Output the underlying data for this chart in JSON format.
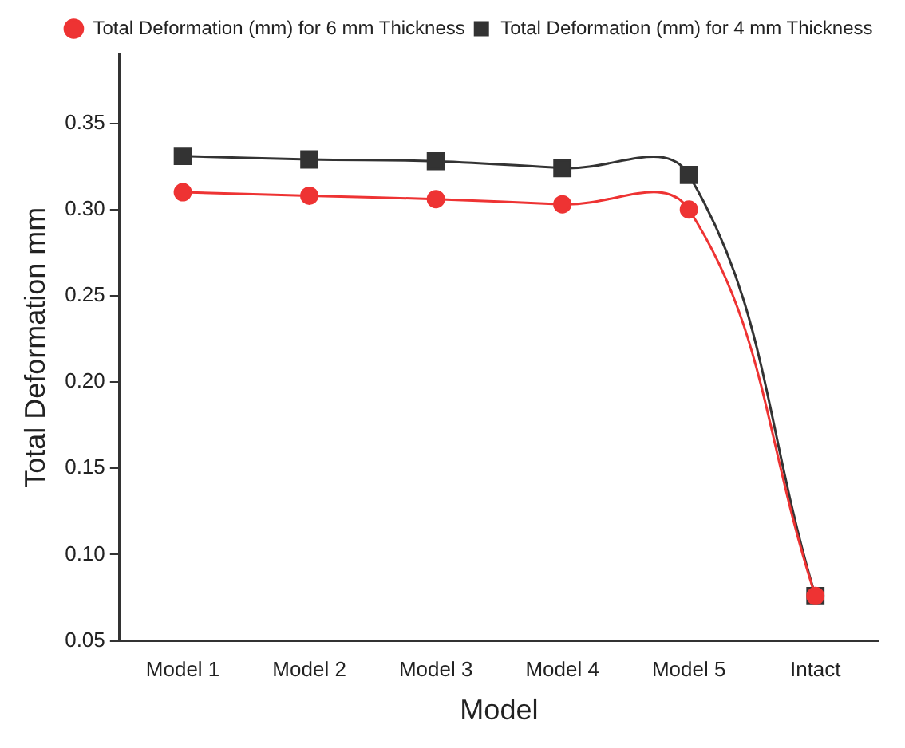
{
  "chart_data": {
    "type": "line",
    "xlabel": "Model",
    "ylabel": "Total Deformation mm",
    "categories": [
      "Model 1",
      "Model 2",
      "Model 3",
      "Model 4",
      "Model 5",
      "Intact"
    ],
    "series": [
      {
        "name": "Total Deformation (mm) for 4 mm Thickness",
        "color": "#333333",
        "marker": "square",
        "values": [
          0.331,
          0.329,
          0.328,
          0.324,
          0.32,
          0.076
        ]
      },
      {
        "name": "Total Deformation (mm) for 6 mm Thickness",
        "color": "#ee3333",
        "marker": "circle",
        "values": [
          0.31,
          0.308,
          0.306,
          0.303,
          0.3,
          0.076
        ]
      }
    ],
    "ylim": [
      0.05,
      0.39
    ],
    "yticks": [
      0.05,
      {
        "value": 0.1,
        "label": "0.10"
      },
      0.15,
      {
        "value": 0.2,
        "label": "0.20"
      },
      0.25,
      {
        "value": 0.3,
        "label": "0.30"
      },
      0.35
    ],
    "grid": false,
    "legend": "top right",
    "line_style": "solid"
  }
}
